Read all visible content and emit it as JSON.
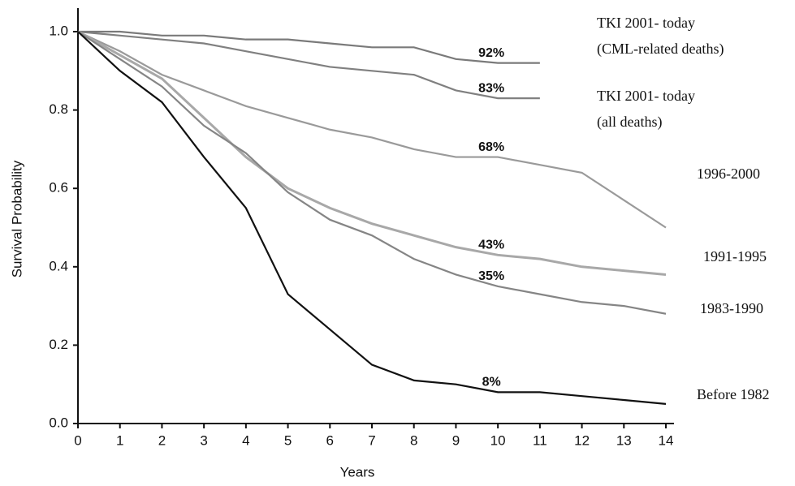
{
  "chart_data": {
    "type": "line",
    "x_label": "Years",
    "y_label": "Survival Probability",
    "x": [
      0,
      1,
      2,
      3,
      4,
      5,
      6,
      7,
      8,
      9,
      10,
      11,
      12,
      13,
      14
    ],
    "xlim": [
      0,
      14
    ],
    "xticks": [
      0,
      1,
      2,
      3,
      4,
      5,
      6,
      7,
      8,
      9,
      10,
      11,
      12,
      13,
      14
    ],
    "ylim": [
      0,
      1.04
    ],
    "yticks": [
      {
        "value": 0,
        "label": "0.0"
      },
      0.2,
      0.4,
      0.6,
      0.8,
      {
        "value": 1,
        "label": "1.0"
      }
    ],
    "series": [
      {
        "name": "TKI 2001- today",
        "name_note": "(CML-related deaths)",
        "color": "#7a7a7a",
        "values": [
          1.0,
          1.0,
          0.99,
          0.99,
          0.98,
          0.98,
          0.97,
          0.96,
          0.96,
          0.93,
          0.92,
          0.92,
          null,
          null,
          null
        ],
        "value_labels": [
          null,
          null,
          null,
          null,
          null,
          null,
          null,
          null,
          null,
          null,
          "92%",
          null,
          null,
          null,
          null
        ]
      },
      {
        "name": "TKI 2001- today",
        "name_note": "(all deaths)",
        "color": "#808080",
        "values": [
          1.0,
          0.99,
          0.98,
          0.97,
          0.95,
          0.93,
          0.91,
          0.9,
          0.89,
          0.85,
          0.83,
          0.83,
          null,
          null,
          null
        ],
        "value_labels": [
          null,
          null,
          null,
          null,
          null,
          null,
          null,
          null,
          null,
          null,
          "83%",
          null,
          null,
          null,
          null
        ]
      },
      {
        "name": "1996-2000",
        "color": "#9a9a9a",
        "values": [
          1.0,
          0.95,
          0.89,
          0.85,
          0.81,
          0.78,
          0.75,
          0.73,
          0.7,
          0.68,
          0.68,
          0.66,
          0.64,
          0.57,
          0.5
        ],
        "value_labels": [
          null,
          null,
          null,
          null,
          null,
          null,
          null,
          null,
          null,
          null,
          "68%",
          null,
          null,
          null,
          null
        ]
      },
      {
        "name": "1991-1995",
        "color": "#a8a8a8",
        "values": [
          1.0,
          0.94,
          0.88,
          0.78,
          0.68,
          0.6,
          0.55,
          0.51,
          0.48,
          0.45,
          0.43,
          0.42,
          0.4,
          0.39,
          0.38
        ],
        "value_labels": [
          null,
          null,
          null,
          null,
          null,
          null,
          null,
          null,
          null,
          null,
          "43%",
          null,
          null,
          null,
          null
        ]
      },
      {
        "name": "1983-1990",
        "color": "#858585",
        "values": [
          1.0,
          0.93,
          0.86,
          0.76,
          0.69,
          0.59,
          0.52,
          0.48,
          0.42,
          0.38,
          0.35,
          0.33,
          0.31,
          0.3,
          0.28
        ],
        "value_labels": [
          null,
          null,
          null,
          null,
          null,
          null,
          null,
          null,
          null,
          null,
          "35%",
          null,
          null,
          null,
          null
        ]
      },
      {
        "name": "Before 1982",
        "color": "#111111",
        "values": [
          1.0,
          0.9,
          0.82,
          0.68,
          0.55,
          0.33,
          0.24,
          0.15,
          0.11,
          0.1,
          0.08,
          0.08,
          0.07,
          0.06,
          0.05
        ],
        "value_labels": [
          null,
          null,
          null,
          null,
          null,
          null,
          null,
          null,
          null,
          null,
          "8%",
          null,
          null,
          null,
          null
        ]
      }
    ]
  }
}
